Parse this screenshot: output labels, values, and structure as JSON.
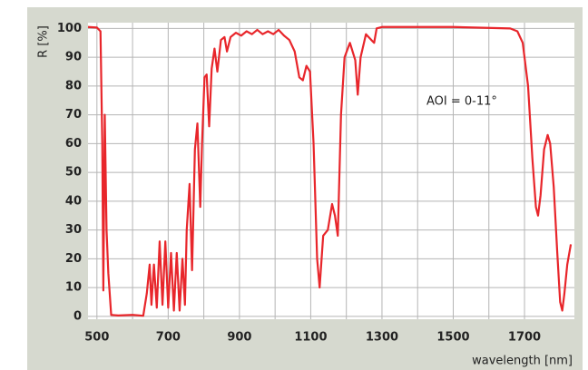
{
  "chart_data": {
    "type": "line",
    "xlabel": "wavelength [nm]",
    "ylabel": "R [%]",
    "annotation": "AOI = 0-11°",
    "color": "#e8262b",
    "grid": true,
    "xlim": [
      475,
      1840
    ],
    "ylim": [
      -1,
      102
    ],
    "xticks": [
      500,
      700,
      900,
      1100,
      1300,
      1500,
      1700
    ],
    "yticks": [
      0,
      10,
      20,
      30,
      40,
      50,
      60,
      70,
      80,
      90,
      100
    ],
    "x": [
      475,
      500,
      510,
      515,
      518,
      522,
      527,
      532,
      540,
      560,
      600,
      630,
      640,
      648,
      653,
      660,
      668,
      676,
      684,
      692,
      700,
      708,
      716,
      724,
      732,
      740,
      747,
      752,
      760,
      767,
      775,
      782,
      790,
      795,
      802,
      808,
      815,
      822,
      830,
      838,
      848,
      858,
      865,
      875,
      890,
      905,
      920,
      935,
      950,
      965,
      980,
      995,
      1010,
      1025,
      1040,
      1055,
      1068,
      1078,
      1088,
      1098,
      1108,
      1118,
      1125,
      1135,
      1148,
      1160,
      1168,
      1176,
      1185,
      1195,
      1210,
      1225,
      1232,
      1240,
      1255,
      1270,
      1278,
      1285,
      1300,
      1500,
      1660,
      1680,
      1695,
      1710,
      1722,
      1732,
      1738,
      1745,
      1755,
      1765,
      1772,
      1782,
      1792,
      1800,
      1806,
      1812,
      1820,
      1830
    ],
    "values": [
      100.5,
      100.3,
      99,
      60,
      9,
      70,
      30,
      15,
      0.5,
      0.3,
      0.5,
      0.2,
      8,
      18,
      4,
      18,
      3,
      26,
      4,
      26,
      3,
      22,
      2,
      22,
      2,
      20,
      4,
      30,
      46,
      16,
      58,
      67,
      38,
      60,
      83,
      84,
      66,
      86,
      93,
      85,
      96,
      97,
      92,
      97,
      98.5,
      97.5,
      99,
      98,
      99.5,
      98,
      99,
      98,
      99.5,
      97.5,
      96,
      92,
      83,
      82,
      87,
      85,
      60,
      20,
      10,
      28,
      30,
      39,
      35,
      28,
      70,
      90,
      95,
      89,
      77,
      90,
      98,
      96,
      95,
      100,
      100.5,
      100.5,
      100,
      99,
      95,
      80,
      55,
      38,
      35,
      42,
      58,
      63,
      60,
      45,
      22,
      5,
      2,
      8,
      18,
      25
    ]
  }
}
